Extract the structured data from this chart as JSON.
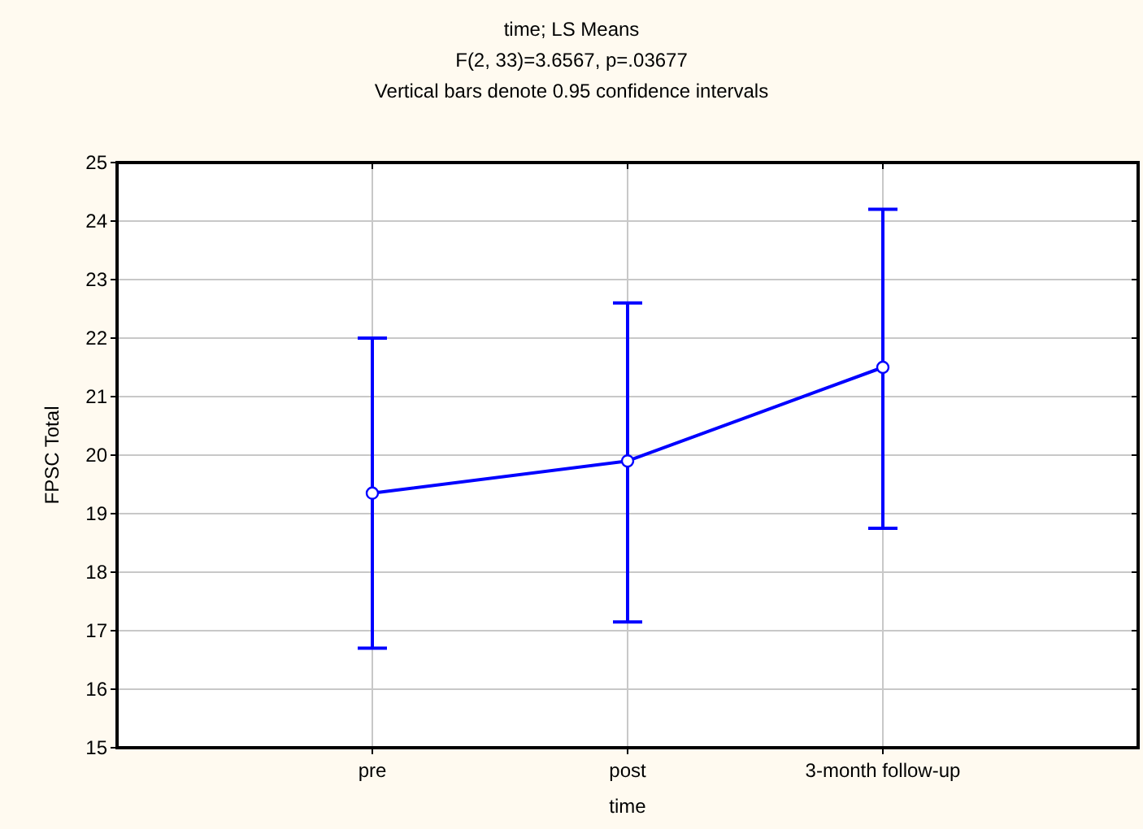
{
  "chart_data": {
    "type": "line",
    "title": "time; LS Means",
    "subtitle": "F(2, 33)=3.6567, p=.03677",
    "annotations": [
      "Vertical bars denote 0.95 confidence intervals"
    ],
    "xlabel": "time",
    "ylabel": "FPSC Total",
    "categories": [
      "pre",
      "post",
      "3-month follow-up"
    ],
    "series": [
      {
        "color": "#0000ff",
        "values": [
          19.35,
          19.9,
          21.5
        ],
        "errors": [
          [
            16.7,
            22.0
          ],
          [
            17.15,
            22.6
          ],
          [
            18.75,
            24.2
          ]
        ]
      }
    ],
    "ylim": [
      15,
      25
    ],
    "yticks": [
      15,
      16,
      17,
      18,
      19,
      20,
      21,
      22,
      23,
      24,
      25
    ],
    "grid": true,
    "marker": "circle",
    "line_style": "solid"
  }
}
